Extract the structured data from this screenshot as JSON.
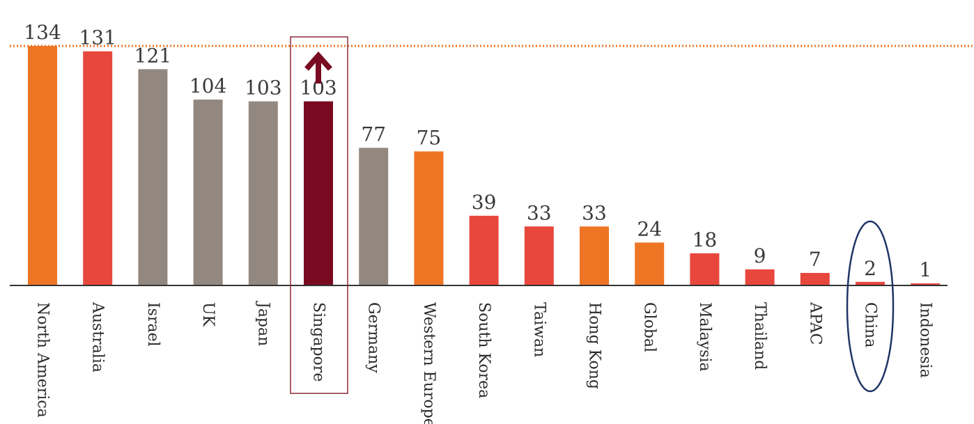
{
  "chart_data": {
    "type": "bar",
    "title": "",
    "xlabel": "",
    "ylabel": "",
    "ylim": [
      0,
      134
    ],
    "grid": false,
    "legend": "none",
    "categories": [
      "North America",
      "Australia",
      "Israel",
      "UK",
      "Japan",
      "Singapore",
      "Germany",
      "Western Europe",
      "South Korea",
      "Taiwan",
      "Hong Kong",
      "Global",
      "Malaysia",
      "Thailand",
      "APAC",
      "China",
      "Indonesia"
    ],
    "values": [
      134,
      131,
      121,
      104,
      103,
      103,
      77,
      75,
      39,
      33,
      33,
      24,
      18,
      9,
      7,
      2,
      1
    ],
    "bar_colors": [
      "#ee7524",
      "#e8473e",
      "#938880",
      "#938880",
      "#938880",
      "#7a0a22",
      "#938880",
      "#ee7524",
      "#e8473e",
      "#e8473e",
      "#ee7524",
      "#ee7524",
      "#e8473e",
      "#e8473e",
      "#e8473e",
      "#e8473e",
      "#e8473e"
    ],
    "reference_line": {
      "value": 134,
      "color": "#ee7524",
      "style": "dotted"
    },
    "highlights": {
      "Singapore": {
        "shape": "box",
        "color": "#8b2a3a",
        "arrow": "up",
        "arrow_color": "#7a0a22"
      },
      "China": {
        "shape": "ellipse",
        "color": "#1f3566"
      }
    },
    "colors": {
      "axis": "#333333",
      "text": "#3a3a3a"
    }
  }
}
